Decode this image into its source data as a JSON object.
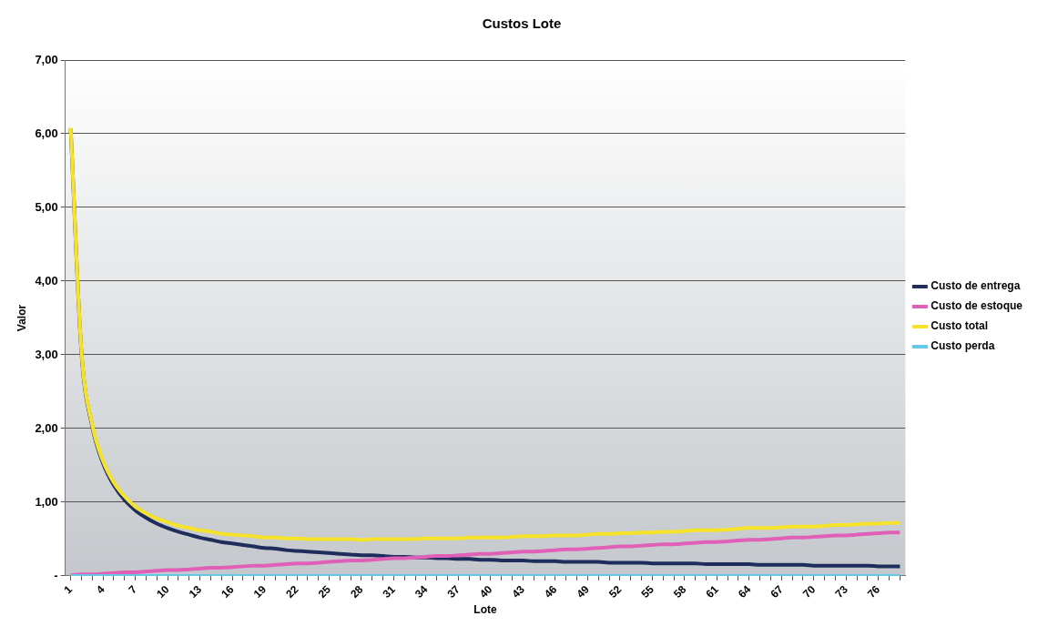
{
  "chart_data": {
    "type": "line",
    "title": "Custos Lote",
    "xlabel": "Lote",
    "ylabel": "Valor",
    "categories": [
      "1",
      null,
      null,
      "4",
      null,
      null,
      "7",
      null,
      null,
      "10",
      null,
      null,
      "13",
      null,
      null,
      "16",
      null,
      null,
      "19",
      null,
      null,
      "22",
      null,
      null,
      "25",
      null,
      null,
      "28",
      null,
      null,
      "31",
      null,
      null,
      "34",
      null,
      null,
      "37",
      null,
      null,
      "40",
      null,
      null,
      "43",
      null,
      null,
      "46",
      null,
      null,
      "49",
      null,
      null,
      "52",
      null,
      null,
      "55",
      null,
      null,
      "58",
      null,
      null,
      "61",
      null,
      null,
      "64",
      null,
      null,
      "67",
      null,
      null,
      "70",
      null,
      null,
      "73",
      null,
      null,
      "76",
      null,
      null
    ],
    "series": [
      {
        "name": "Custo de entrega",
        "color": "#1f2d5c",
        "values": [
          6.07,
          3.03,
          2.03,
          1.53,
          1.23,
          1.03,
          0.89,
          0.79,
          0.71,
          0.65,
          0.6,
          0.56,
          0.52,
          0.49,
          0.46,
          0.44,
          0.42,
          0.4,
          0.38,
          0.37,
          0.35,
          0.34,
          0.33,
          0.32,
          0.31,
          0.3,
          0.29,
          0.28,
          0.28,
          0.27,
          0.26,
          0.26,
          0.25,
          0.25,
          0.24,
          0.24,
          0.23,
          0.23,
          0.22,
          0.22,
          0.21,
          0.21,
          0.21,
          0.2,
          0.2,
          0.2,
          0.19,
          0.19,
          0.19,
          0.19,
          0.18,
          0.18,
          0.18,
          0.18,
          0.17,
          0.17,
          0.17,
          0.17,
          0.17,
          0.16,
          0.16,
          0.16,
          0.16,
          0.16,
          0.15,
          0.15,
          0.15,
          0.15,
          0.15,
          0.14,
          0.14,
          0.14,
          0.14,
          0.14,
          0.14,
          0.13,
          0.13,
          0.13
        ]
      },
      {
        "name": "Custo de estoque",
        "color": "#e060b8",
        "values": [
          0.01,
          0.02,
          0.02,
          0.03,
          0.04,
          0.05,
          0.05,
          0.06,
          0.07,
          0.08,
          0.08,
          0.09,
          0.1,
          0.11,
          0.11,
          0.12,
          0.13,
          0.14,
          0.14,
          0.15,
          0.16,
          0.17,
          0.17,
          0.18,
          0.19,
          0.2,
          0.21,
          0.21,
          0.22,
          0.23,
          0.24,
          0.24,
          0.25,
          0.26,
          0.27,
          0.27,
          0.28,
          0.29,
          0.3,
          0.3,
          0.31,
          0.32,
          0.33,
          0.33,
          0.34,
          0.35,
          0.36,
          0.36,
          0.37,
          0.38,
          0.39,
          0.4,
          0.4,
          0.41,
          0.42,
          0.43,
          0.43,
          0.44,
          0.45,
          0.46,
          0.46,
          0.47,
          0.48,
          0.49,
          0.49,
          0.5,
          0.51,
          0.52,
          0.52,
          0.53,
          0.54,
          0.55,
          0.55,
          0.56,
          0.57,
          0.58,
          0.59,
          0.59
        ]
      },
      {
        "name": "Custo total",
        "color": "#f5e22a",
        "values": [
          6.08,
          3.05,
          2.05,
          1.56,
          1.27,
          1.08,
          0.94,
          0.85,
          0.78,
          0.73,
          0.68,
          0.65,
          0.62,
          0.6,
          0.57,
          0.56,
          0.55,
          0.54,
          0.52,
          0.52,
          0.51,
          0.51,
          0.5,
          0.5,
          0.5,
          0.5,
          0.5,
          0.49,
          0.5,
          0.5,
          0.5,
          0.5,
          0.5,
          0.51,
          0.51,
          0.51,
          0.51,
          0.52,
          0.52,
          0.52,
          0.52,
          0.53,
          0.54,
          0.54,
          0.54,
          0.55,
          0.55,
          0.55,
          0.56,
          0.57,
          0.57,
          0.58,
          0.58,
          0.59,
          0.59,
          0.6,
          0.6,
          0.61,
          0.62,
          0.62,
          0.62,
          0.63,
          0.64,
          0.65,
          0.65,
          0.65,
          0.66,
          0.67,
          0.67,
          0.67,
          0.68,
          0.69,
          0.69,
          0.7,
          0.71,
          0.71,
          0.72,
          0.72
        ]
      },
      {
        "name": "Custo perda",
        "color": "#66c8e8",
        "values": [
          0,
          0,
          0,
          0,
          0,
          0,
          0,
          0,
          0,
          0,
          0,
          0,
          0,
          0,
          0,
          0,
          0,
          0,
          0,
          0,
          0,
          0,
          0,
          0,
          0,
          0,
          0,
          0,
          0,
          0,
          0,
          0,
          0,
          0,
          0,
          0,
          0,
          0,
          0,
          0,
          0,
          0,
          0,
          0,
          0,
          0,
          0,
          0,
          0,
          0,
          0,
          0,
          0,
          0,
          0,
          0,
          0,
          0,
          0,
          0,
          0,
          0,
          0,
          0,
          0,
          0,
          0,
          0,
          0,
          0,
          0,
          0,
          0,
          0,
          0,
          0,
          0,
          0
        ]
      }
    ],
    "ylim": [
      0,
      7
    ],
    "yticks": [
      {
        "value": 0,
        "label": "-"
      },
      {
        "value": 1,
        "label": "1,00"
      },
      {
        "value": 2,
        "label": "2,00"
      },
      {
        "value": 3,
        "label": "3,00"
      },
      {
        "value": 4,
        "label": "4,00"
      },
      {
        "value": 5,
        "label": "5,00"
      },
      {
        "value": 6,
        "label": "6,00"
      },
      {
        "value": 7,
        "label": "7,00"
      }
    ],
    "grid": "y",
    "legend": "right",
    "marker": "none",
    "line_style": "solid"
  }
}
